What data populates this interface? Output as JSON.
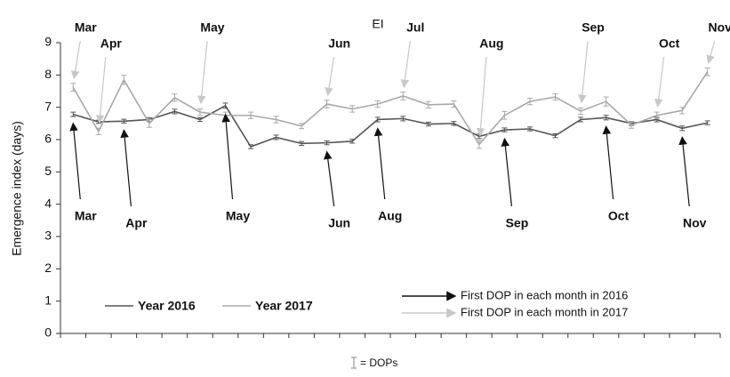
{
  "chart_data": {
    "type": "line",
    "title": "EI",
    "y_label": "Emergence index (days)",
    "categories": [
      null,
      null,
      null,
      null,
      null,
      null,
      null,
      null,
      null,
      null,
      null,
      null,
      null,
      null,
      null,
      null,
      null,
      null,
      null,
      null,
      null,
      null,
      null,
      null,
      null,
      null
    ],
    "ylim": [
      0,
      9
    ],
    "yticks": [
      0,
      1,
      2,
      3,
      4,
      5,
      6,
      7,
      8,
      9
    ],
    "series": [
      {
        "name": "Year 2016",
        "color": "#555555",
        "values": [
          6.78,
          6.55,
          6.57,
          6.62,
          6.87,
          6.62,
          7.05,
          5.78,
          6.07,
          5.88,
          5.9,
          5.95,
          6.62,
          6.65,
          6.48,
          6.5,
          6.1,
          6.3,
          6.33,
          6.12,
          6.62,
          6.68,
          6.5,
          6.62,
          6.35,
          6.52
        ],
        "errors": [
          0.07,
          0.05,
          0.06,
          0.06,
          0.07,
          0.06,
          0.08,
          0.06,
          0.07,
          0.06,
          0.06,
          0.06,
          0.07,
          0.07,
          0.06,
          0.06,
          0.07,
          0.06,
          0.06,
          0.06,
          0.07,
          0.07,
          0.06,
          0.07,
          0.07,
          0.06
        ]
      },
      {
        "name": "Year 2017",
        "color": "#a8a8a8",
        "values": [
          7.62,
          6.25,
          7.85,
          6.5,
          7.3,
          6.85,
          6.75,
          6.75,
          6.62,
          6.42,
          7.1,
          6.95,
          7.1,
          7.35,
          7.08,
          7.1,
          5.85,
          6.75,
          7.18,
          7.32,
          6.88,
          7.18,
          6.45,
          6.75,
          6.9,
          8.1
        ],
        "errors": [
          0.12,
          0.1,
          0.14,
          0.12,
          0.11,
          0.1,
          0.1,
          0.1,
          0.1,
          0.08,
          0.12,
          0.1,
          0.1,
          0.12,
          0.1,
          0.1,
          0.12,
          0.12,
          0.1,
          0.1,
          0.1,
          0.14,
          0.1,
          0.1,
          0.1,
          0.12
        ]
      }
    ],
    "annotations_2016": [
      {
        "text": "Mar",
        "point": 0
      },
      {
        "text": "Apr",
        "point": 2
      },
      {
        "text": "May",
        "point": 6
      },
      {
        "text": "Jun",
        "point": 10
      },
      {
        "text": "Aug",
        "point": 12
      },
      {
        "text": "Sep",
        "point": 17
      },
      {
        "text": "Oct",
        "point": 21
      },
      {
        "text": "Nov",
        "point": 24
      }
    ],
    "annotations_2017": [
      {
        "text": "Mar",
        "point": 0
      },
      {
        "text": "Apr",
        "point": 1
      },
      {
        "text": "May",
        "point": 5
      },
      {
        "text": "Jun",
        "point": 10
      },
      {
        "text": "Jul",
        "point": 13
      },
      {
        "text": "Aug",
        "point": 16
      },
      {
        "text": "Sep",
        "point": 20
      },
      {
        "text": "Oct",
        "point": 23
      },
      {
        "text": "Nov",
        "point": 25
      }
    ],
    "arrow_legend": [
      "First DOP in each month in 2016",
      "First DOP in each month in 2017"
    ],
    "dop_note": "= DOPs"
  }
}
